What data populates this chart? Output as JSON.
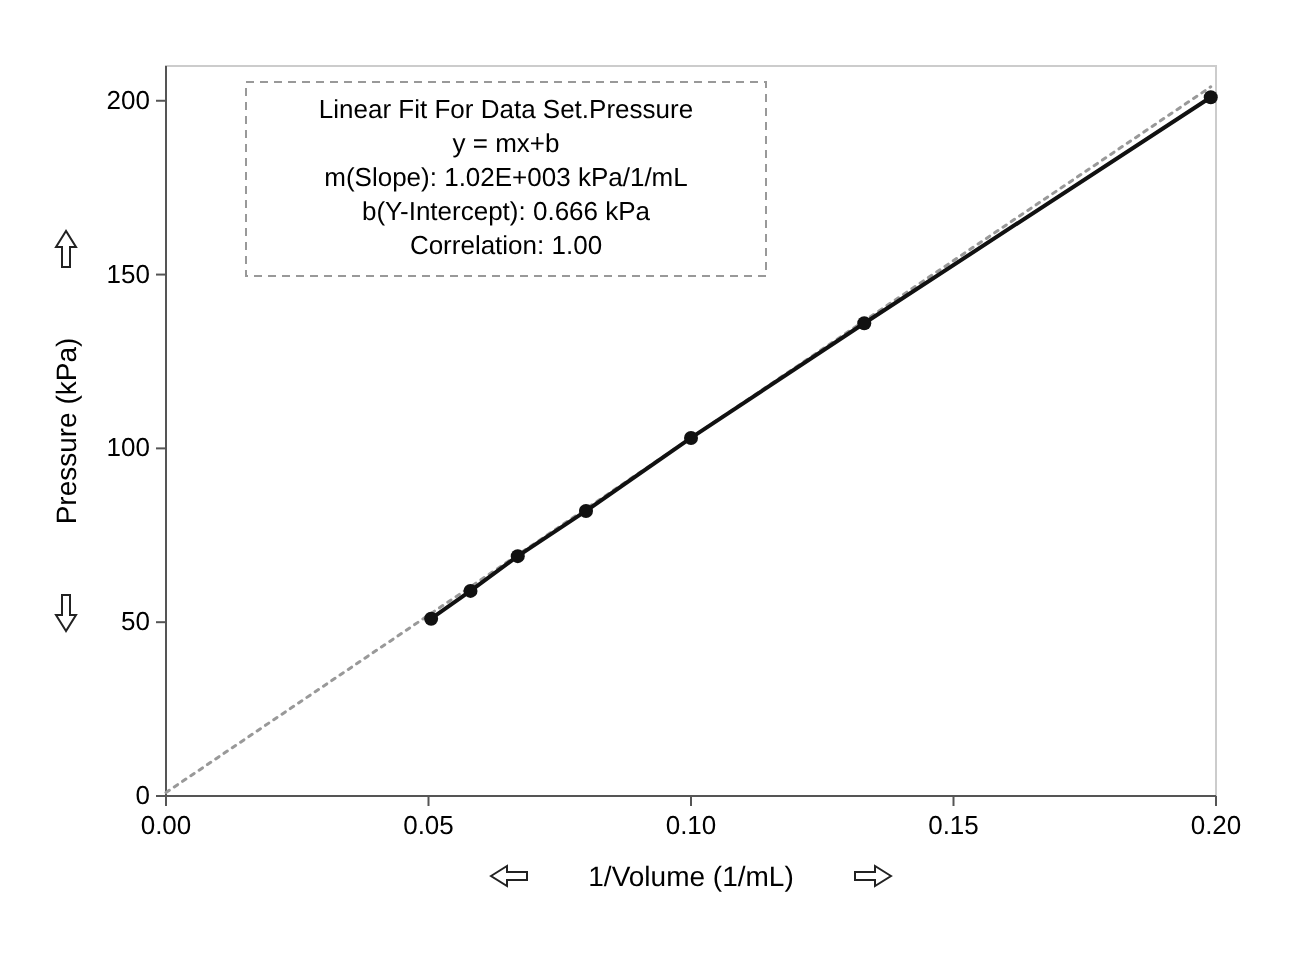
{
  "chart_data": {
    "type": "line",
    "xlabel": "1/Volume (1/mL)",
    "ylabel": "Pressure (kPa)",
    "xlim": [
      0,
      0.2
    ],
    "ylim": [
      0,
      210
    ],
    "xticks": [
      {
        "value": 0,
        "label": "0.00"
      },
      {
        "value": 0.05,
        "label": "0.05"
      },
      {
        "value": 0.1,
        "label": "0.10"
      },
      {
        "value": 0.15,
        "label": "0.15"
      },
      {
        "value": 0.2,
        "label": "0.20"
      }
    ],
    "yticks": [
      0,
      50,
      100,
      150,
      200
    ],
    "series": [
      {
        "color": "#999999",
        "line_style": "dotted",
        "marker": "none",
        "x": [
          0,
          0.199
        ],
        "values": [
          1,
          204
        ]
      },
      {
        "color": "#111111",
        "line_style": "solid",
        "marker": "circle",
        "x": [
          0.0505,
          0.058,
          0.067,
          0.08,
          0.1,
          0.133,
          0.199
        ],
        "values": [
          51,
          59,
          69,
          82,
          103,
          136,
          201
        ]
      }
    ],
    "annotations": [
      "Linear Fit For  Data Set.Pressure",
      "y = mx+b",
      "m(Slope): 1.02E+003 kPa/1/mL",
      "b(Y-Intercept): 0.666 kPa",
      "Correlation: 1.00"
    ],
    "grid": false
  }
}
